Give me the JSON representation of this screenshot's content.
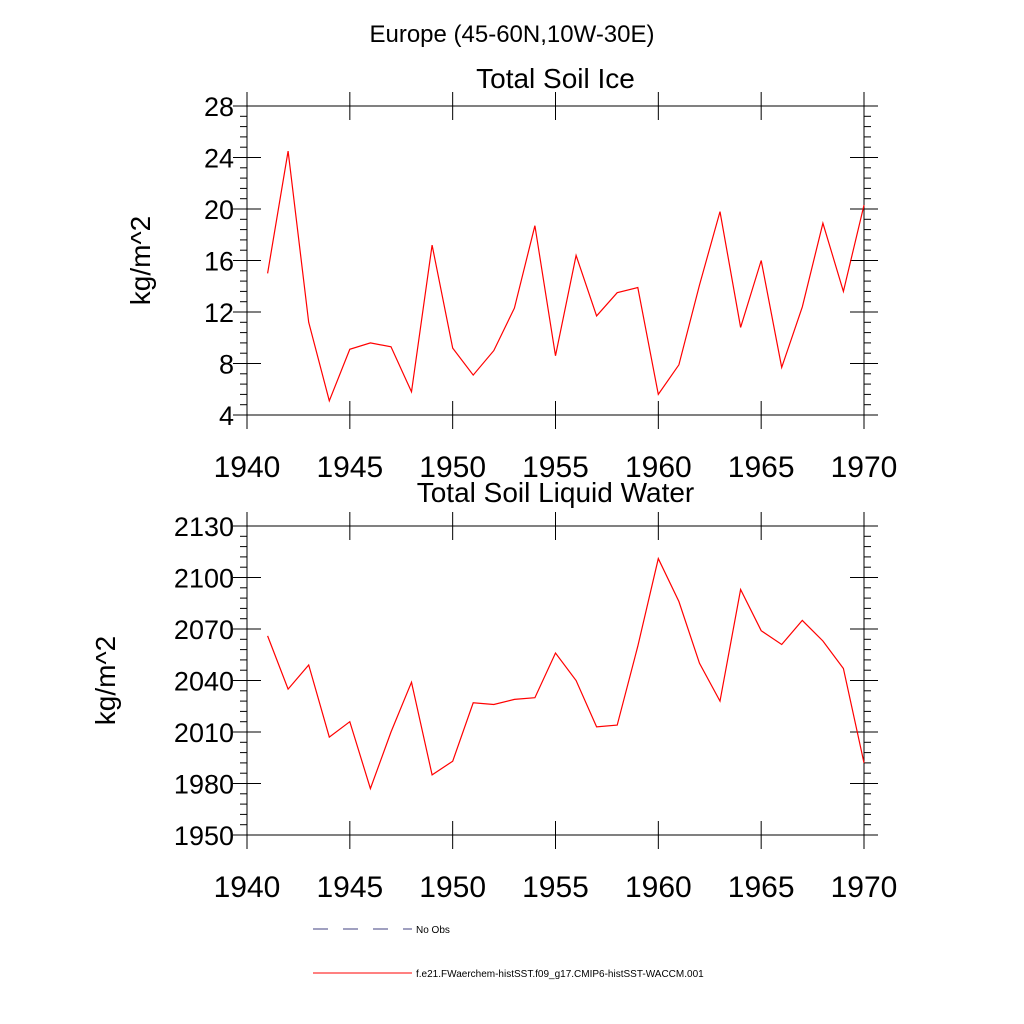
{
  "figure": {
    "suptitle": "Europe (45-60N,10W-30E)"
  },
  "legend": {
    "entries": [
      {
        "label": "No Obs",
        "style": "dashed",
        "color": "#404080"
      },
      {
        "label": "f.e21.FWaerchem-histSST.f09_g17.CMIP6-histSST-WACCM.001",
        "style": "solid",
        "color": "#ff0000"
      }
    ]
  },
  "chart_data": [
    {
      "type": "line",
      "title": "Total Soil Ice",
      "xlabel": "",
      "ylabel": "kg/m^2",
      "xlim": [
        1940,
        1970
      ],
      "ylim": [
        4,
        28
      ],
      "xticks": [
        1940,
        1945,
        1950,
        1955,
        1960,
        1965,
        1970
      ],
      "yticks": [
        4,
        8,
        12,
        16,
        20,
        24,
        28
      ],
      "grid": false,
      "series": [
        {
          "color": "#ff0000",
          "x": [
            1941,
            1942,
            1943,
            1944,
            1945,
            1946,
            1947,
            1948,
            1949,
            1950,
            1951,
            1952,
            1953,
            1954,
            1955,
            1956,
            1957,
            1958,
            1959,
            1960,
            1961,
            1962,
            1963,
            1964,
            1965,
            1966,
            1967,
            1968,
            1969,
            1970
          ],
          "values": [
            15.0,
            24.5,
            11.2,
            5.1,
            9.1,
            9.6,
            9.3,
            5.8,
            17.2,
            9.2,
            7.1,
            9.0,
            12.3,
            18.7,
            8.6,
            16.4,
            11.7,
            13.5,
            13.9,
            5.6,
            7.9,
            14.1,
            19.8,
            10.8,
            16.0,
            7.7,
            12.4,
            18.9,
            13.6,
            20.3
          ]
        }
      ]
    },
    {
      "type": "line",
      "title": "Total Soil Liquid Water",
      "xlabel": "",
      "ylabel": "kg/m^2",
      "xlim": [
        1940,
        1970
      ],
      "ylim": [
        1950,
        2130
      ],
      "xticks": [
        1940,
        1945,
        1950,
        1955,
        1960,
        1965,
        1970
      ],
      "yticks": [
        1950,
        1980,
        2010,
        2040,
        2070,
        2100,
        2130
      ],
      "grid": false,
      "series": [
        {
          "color": "#ff0000",
          "x": [
            1941,
            1942,
            1943,
            1944,
            1945,
            1946,
            1947,
            1948,
            1949,
            1950,
            1951,
            1952,
            1953,
            1954,
            1955,
            1956,
            1957,
            1958,
            1959,
            1960,
            1961,
            1962,
            1963,
            1964,
            1965,
            1966,
            1967,
            1968,
            1969,
            1970
          ],
          "values": [
            2066,
            2035,
            2049,
            2007,
            2016,
            1977,
            2010,
            2039,
            1985,
            1993,
            2027,
            2026,
            2029,
            2030,
            2056,
            2040,
            2013,
            2014,
            2060,
            2111,
            2086,
            2050,
            2028,
            2093,
            2069,
            2061,
            2075,
            2063,
            2047,
            1992
          ]
        }
      ]
    }
  ]
}
